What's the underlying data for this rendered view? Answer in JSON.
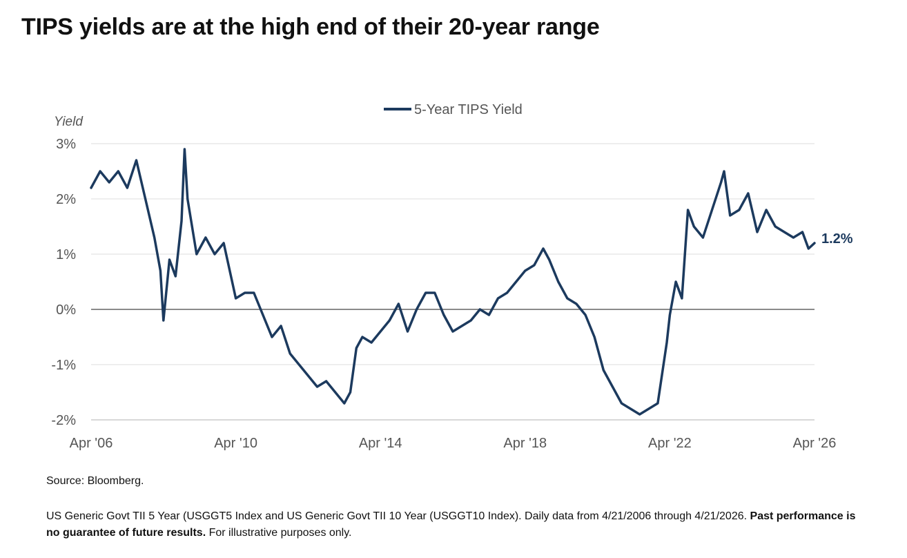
{
  "title": "TIPS yields are at the high end of their 20-year range",
  "source": "Source: Bloomberg.",
  "footnote": {
    "text": "US Generic Govt TII 5 Year (USGGT5 Index and US Generic Govt TII 10 Year (USGGT10 Index). Daily data from 4/21/2006 through 4/21/2026.",
    "bold": "Past performance is no guarantee of future results.",
    "tail": "For illustrative purposes only."
  },
  "colors": {
    "series": "#1c3a5e",
    "grid": "#e8e8e8",
    "zero_line": "#8a8a8a",
    "tick_text": "#555555"
  },
  "chart_data": {
    "type": "line",
    "ylabel": "Yield",
    "ylim": [
      -2,
      3
    ],
    "yticks": [
      {
        "value": 3,
        "label": "3%"
      },
      {
        "value": 2,
        "label": "2%"
      },
      {
        "value": 1,
        "label": "1%"
      },
      {
        "value": 0,
        "label": "0%"
      },
      {
        "value": -1,
        "label": "-1%"
      },
      {
        "value": -2,
        "label": "-2%"
      }
    ],
    "xlim": [
      "2006-04",
      "2026-04"
    ],
    "xticks": [
      {
        "value": "2006-04",
        "label": "Apr '06"
      },
      {
        "value": "2010-04",
        "label": "Apr '10"
      },
      {
        "value": "2014-04",
        "label": "Apr '14"
      },
      {
        "value": "2018-04",
        "label": "Apr '18"
      },
      {
        "value": "2022-04",
        "label": "Apr '22"
      },
      {
        "value": "2026-04",
        "label": "Apr '26"
      }
    ],
    "grid": true,
    "legend": "top-center",
    "end_label": "1.2%",
    "series": [
      {
        "name": "5-Year TIPS Yield",
        "points": [
          [
            "2006-04",
            2.2
          ],
          [
            "2006-07",
            2.5
          ],
          [
            "2006-10",
            2.3
          ],
          [
            "2007-01",
            2.5
          ],
          [
            "2007-04",
            2.2
          ],
          [
            "2007-07",
            2.7
          ],
          [
            "2007-10",
            2.0
          ],
          [
            "2008-01",
            1.3
          ],
          [
            "2008-03",
            0.7
          ],
          [
            "2008-04",
            -0.2
          ],
          [
            "2008-06",
            0.9
          ],
          [
            "2008-08",
            0.6
          ],
          [
            "2008-10",
            1.6
          ],
          [
            "2008-11",
            2.9
          ],
          [
            "2008-12",
            2.0
          ],
          [
            "2009-03",
            1.0
          ],
          [
            "2009-06",
            1.3
          ],
          [
            "2009-09",
            1.0
          ],
          [
            "2009-12",
            1.2
          ],
          [
            "2010-04",
            0.2
          ],
          [
            "2010-07",
            0.3
          ],
          [
            "2010-10",
            0.3
          ],
          [
            "2011-01",
            -0.1
          ],
          [
            "2011-04",
            -0.5
          ],
          [
            "2011-07",
            -0.3
          ],
          [
            "2011-10",
            -0.8
          ],
          [
            "2012-01",
            -1.0
          ],
          [
            "2012-04",
            -1.2
          ],
          [
            "2012-07",
            -1.4
          ],
          [
            "2012-10",
            -1.3
          ],
          [
            "2013-01",
            -1.5
          ],
          [
            "2013-04",
            -1.7
          ],
          [
            "2013-06",
            -1.5
          ],
          [
            "2013-08",
            -0.7
          ],
          [
            "2013-10",
            -0.5
          ],
          [
            "2014-01",
            -0.6
          ],
          [
            "2014-04",
            -0.4
          ],
          [
            "2014-07",
            -0.2
          ],
          [
            "2014-10",
            0.1
          ],
          [
            "2015-01",
            -0.4
          ],
          [
            "2015-04",
            0.0
          ],
          [
            "2015-07",
            0.3
          ],
          [
            "2015-10",
            0.3
          ],
          [
            "2016-01",
            -0.1
          ],
          [
            "2016-04",
            -0.4
          ],
          [
            "2016-07",
            -0.3
          ],
          [
            "2016-10",
            -0.2
          ],
          [
            "2017-01",
            0.0
          ],
          [
            "2017-04",
            -0.1
          ],
          [
            "2017-07",
            0.2
          ],
          [
            "2017-10",
            0.3
          ],
          [
            "2018-01",
            0.5
          ],
          [
            "2018-04",
            0.7
          ],
          [
            "2018-07",
            0.8
          ],
          [
            "2018-10",
            1.1
          ],
          [
            "2018-12",
            0.9
          ],
          [
            "2019-03",
            0.5
          ],
          [
            "2019-06",
            0.2
          ],
          [
            "2019-09",
            0.1
          ],
          [
            "2019-12",
            -0.1
          ],
          [
            "2020-03",
            -0.5
          ],
          [
            "2020-06",
            -1.1
          ],
          [
            "2020-09",
            -1.4
          ],
          [
            "2020-12",
            -1.7
          ],
          [
            "2021-03",
            -1.8
          ],
          [
            "2021-06",
            -1.9
          ],
          [
            "2021-09",
            -1.8
          ],
          [
            "2021-12",
            -1.7
          ],
          [
            "2022-03",
            -0.6
          ],
          [
            "2022-04",
            -0.1
          ],
          [
            "2022-06",
            0.5
          ],
          [
            "2022-08",
            0.2
          ],
          [
            "2022-10",
            1.8
          ],
          [
            "2022-12",
            1.5
          ],
          [
            "2023-03",
            1.3
          ],
          [
            "2023-06",
            1.8
          ],
          [
            "2023-09",
            2.3
          ],
          [
            "2023-10",
            2.5
          ],
          [
            "2023-12",
            1.7
          ],
          [
            "2024-03",
            1.8
          ],
          [
            "2024-06",
            2.1
          ],
          [
            "2024-09",
            1.4
          ],
          [
            "2024-12",
            1.8
          ],
          [
            "2025-03",
            1.5
          ],
          [
            "2025-06",
            1.4
          ],
          [
            "2025-09",
            1.3
          ],
          [
            "2025-12",
            1.4
          ],
          [
            "2026-02",
            1.1
          ],
          [
            "2026-04",
            1.2
          ]
        ]
      }
    ]
  }
}
